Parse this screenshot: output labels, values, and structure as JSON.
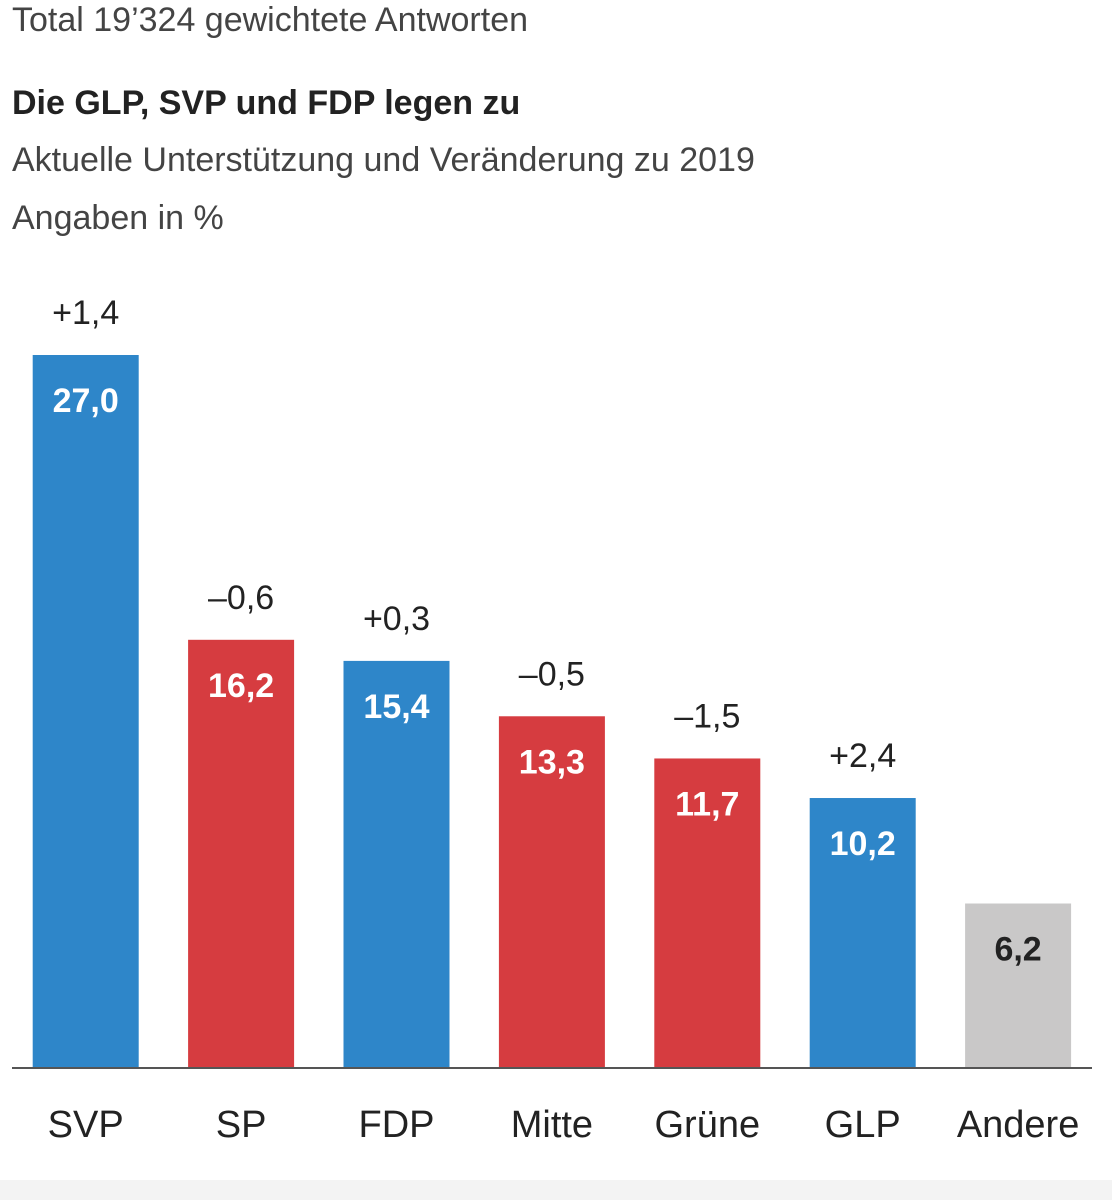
{
  "chart_data": {
    "type": "bar",
    "note": "Total 19’324 gewichtete Antworten",
    "title": "Die GLP, SVP und FDP legen zu",
    "subtitle": "Aktuelle Unterstützung und Veränderung zu 2019",
    "unit_label": "Angaben in %",
    "categories": [
      "SVP",
      "SP",
      "FDP",
      "Mitte",
      "Grüne",
      "GLP",
      "Andere"
    ],
    "values": [
      27.0,
      16.2,
      15.4,
      13.3,
      11.7,
      10.2,
      6.2
    ],
    "value_labels": [
      "27,0",
      "16,2",
      "15,4",
      "13,3",
      "11,7",
      "10,2",
      "6,2"
    ],
    "changes": [
      1.4,
      -0.6,
      0.3,
      -0.5,
      -1.5,
      2.4,
      null
    ],
    "change_labels": [
      "+1,4",
      "–0,6",
      "+0,3",
      "–0,5",
      "–1,5",
      "+2,4",
      null
    ],
    "colors": [
      "#2e86c9",
      "#d63c40",
      "#2e86c9",
      "#d63c40",
      "#d63c40",
      "#2e86c9",
      "#c9c8c8"
    ],
    "label_colors": [
      "#ffffff",
      "#ffffff",
      "#ffffff",
      "#ffffff",
      "#ffffff",
      "#ffffff",
      "#222222"
    ]
  }
}
